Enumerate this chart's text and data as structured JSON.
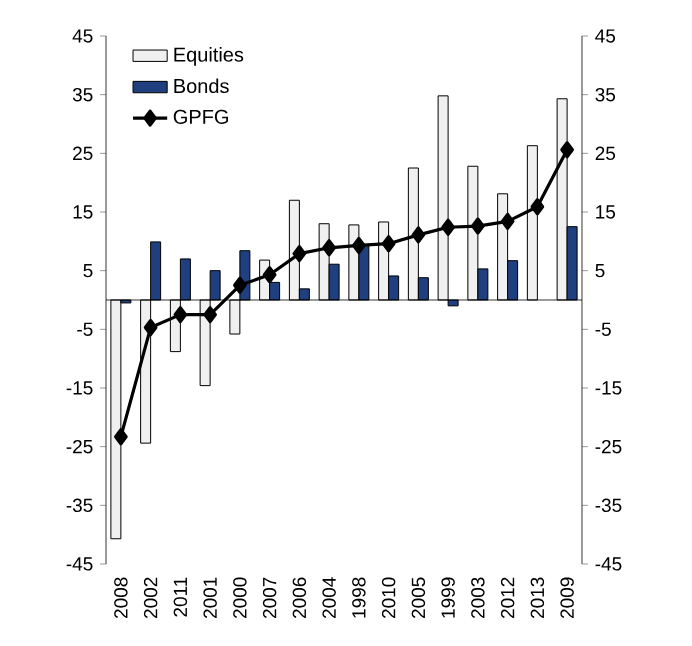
{
  "chart_data": {
    "type": "bar",
    "categories": [
      "2008",
      "2002",
      "2011",
      "2001",
      "2000",
      "2007",
      "2006",
      "2004",
      "1998",
      "2010",
      "2005",
      "1999",
      "2003",
      "2012",
      "2013",
      "2009"
    ],
    "series": [
      {
        "name": "Equities",
        "color": "#f0f0f0",
        "values": [
          -40.7,
          -24.4,
          -8.8,
          -14.6,
          -5.8,
          6.8,
          17.0,
          13.0,
          12.8,
          13.3,
          22.5,
          34.8,
          22.8,
          18.1,
          26.3,
          34.3
        ]
      },
      {
        "name": "Bonds",
        "color": "#1f3f7f",
        "values": [
          -0.5,
          9.9,
          7.0,
          5.0,
          8.4,
          3.0,
          1.9,
          6.1,
          9.3,
          4.1,
          3.8,
          -1.0,
          5.3,
          6.7,
          null,
          12.5
        ]
      },
      {
        "name": "GPFG",
        "type": "line",
        "color": "#000000",
        "values": [
          -23.3,
          -4.7,
          -2.5,
          -2.5,
          2.5,
          4.3,
          7.9,
          8.9,
          9.3,
          9.6,
          11.1,
          12.4,
          12.6,
          13.4,
          15.9,
          25.6
        ]
      }
    ],
    "ylim": [
      -45,
      45
    ],
    "yticks": [
      -45,
      -35,
      -25,
      -15,
      -5,
      5,
      15,
      25,
      35,
      45
    ],
    "y2lim": [
      -45,
      45
    ],
    "y2ticks": [
      -45,
      -35,
      -25,
      -15,
      -5,
      5,
      15,
      25,
      35,
      45
    ],
    "legend": "top left",
    "marker": "diamond",
    "line_style": "solid"
  }
}
